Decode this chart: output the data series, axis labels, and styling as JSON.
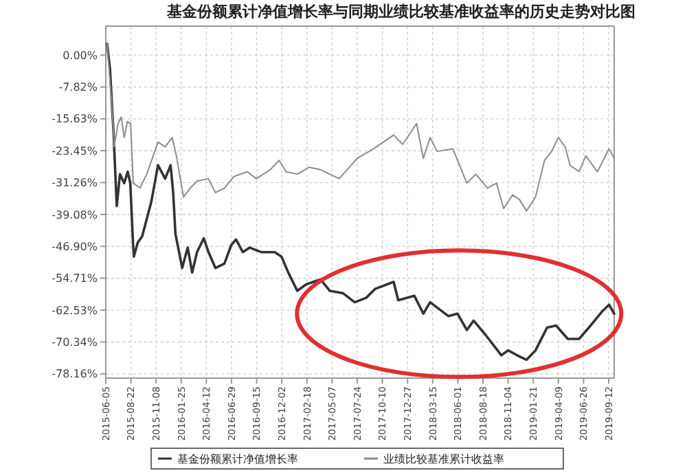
{
  "chart_data": {
    "type": "line",
    "title": "基金份额累计净值增长率与同期业绩比较基准收益率的历史走势对比图",
    "xlim": [
      "2015-06-05",
      "2019-09-29"
    ],
    "xticks": [
      "2015-06-05",
      "2015-08-22",
      "2015-11-08",
      "2016-01-25",
      "2016-04-12",
      "2016-06-29",
      "2016-09-15",
      "2016-12-02",
      "2017-02-18",
      "2017-05-07",
      "2017-07-24",
      "2017-10-10",
      "2017-12-27",
      "2018-03-15",
      "2018-06-01",
      "2018-08-18",
      "2018-11-04",
      "2019-01-21",
      "2019-04-09",
      "2019-06-26",
      "2019-09-12"
    ],
    "ylim": [
      -79.2,
      7.1
    ],
    "yticks": [
      {
        "value": 0,
        "label": "0.00%"
      },
      {
        "value": -7.82,
        "label": "-7.82%"
      },
      {
        "value": -15.63,
        "label": "-15.63%"
      },
      {
        "value": -23.45,
        "label": "-23.45%"
      },
      {
        "value": -31.26,
        "label": "-31.26%"
      },
      {
        "value": -39.08,
        "label": "-39.08%"
      },
      {
        "value": -46.9,
        "label": "-46.90%"
      },
      {
        "value": -54.71,
        "label": "-54.71%"
      },
      {
        "value": -62.53,
        "label": "-62.53%"
      },
      {
        "value": -70.34,
        "label": "-70.34%"
      },
      {
        "value": -78.16,
        "label": "-78.16%"
      }
    ],
    "grid": true,
    "legend": "bottom",
    "marker": "none",
    "line_style": "solid",
    "series": [
      {
        "name": "基金份额累计净值增长率",
        "color": "#333333",
        "x": [
          "2015-06-09",
          "2015-06-18",
          "2015-06-29",
          "2015-07-09",
          "2015-07-19",
          "2015-08-01",
          "2015-08-12",
          "2015-08-20",
          "2015-08-28",
          "2015-08-31",
          "2015-09-12",
          "2015-09-26",
          "2015-10-24",
          "2015-11-14",
          "2015-12-06",
          "2015-12-23",
          "2015-12-31",
          "2016-01-07",
          "2016-01-28",
          "2016-02-14",
          "2016-02-28",
          "2016-03-14",
          "2016-04-04",
          "2016-04-18",
          "2016-05-10",
          "2016-06-07",
          "2016-06-28",
          "2016-07-13",
          "2016-08-03",
          "2016-08-24",
          "2016-09-29",
          "2016-11-10",
          "2016-12-01",
          "2016-12-22",
          "2017-01-19",
          "2017-02-16",
          "2017-04-01",
          "2017-04-30",
          "2017-06-10",
          "2017-07-16",
          "2017-08-21",
          "2017-09-18",
          "2017-11-14",
          "2017-11-28",
          "2018-01-17",
          "2018-02-14",
          "2018-03-07",
          "2018-05-03",
          "2018-05-31",
          "2018-06-29",
          "2018-07-20",
          "2018-08-25",
          "2018-10-14",
          "2018-11-04",
          "2018-12-02",
          "2018-12-31",
          "2019-01-28",
          "2019-03-05",
          "2019-04-02",
          "2019-05-08",
          "2019-06-12",
          "2019-07-18",
          "2019-08-22",
          "2019-09-13",
          "2019-09-29"
        ],
        "values": [
          2.8,
          -3.4,
          -19.1,
          -37,
          -29.2,
          -31.4,
          -28.6,
          -31.4,
          -45.5,
          -49.4,
          -46,
          -44.4,
          -36,
          -27,
          -30.3,
          -27,
          -33.7,
          -43.8,
          -52.2,
          -47.2,
          -53.3,
          -48.3,
          -44.9,
          -48.2,
          -52.2,
          -51.1,
          -46.6,
          -45.2,
          -48.3,
          -47.2,
          -48.3,
          -48.3,
          -49.4,
          -53.3,
          -57.8,
          -56.2,
          -55,
          -57.8,
          -58.4,
          -60.6,
          -59.5,
          -57.3,
          -55.6,
          -60.1,
          -59,
          -63.4,
          -60.6,
          -64,
          -63.4,
          -67.4,
          -65.1,
          -68.5,
          -73.6,
          -72.4,
          -73.6,
          -74.7,
          -72.4,
          -66.8,
          -66.3,
          -69.6,
          -69.6,
          -66.3,
          -62.9,
          -61.2,
          -63.4
        ]
      },
      {
        "name": "业绩比较基准累计收益率",
        "color": "#8c8c8c",
        "x": [
          "2015-06-09",
          "2015-06-25",
          "2015-07-01",
          "2015-07-13",
          "2015-07-23",
          "2015-08-01",
          "2015-08-11",
          "2015-08-21",
          "2015-08-29",
          "2015-09-19",
          "2015-10-10",
          "2015-11-14",
          "2015-12-06",
          "2015-12-28",
          "2016-01-10",
          "2016-02-01",
          "2016-02-22",
          "2016-03-14",
          "2016-04-18",
          "2016-05-10",
          "2016-06-07",
          "2016-07-06",
          "2016-08-17",
          "2016-09-14",
          "2016-10-27",
          "2016-11-24",
          "2016-12-15",
          "2017-01-19",
          "2017-02-24",
          "2017-04-01",
          "2017-04-30",
          "2017-05-29",
          "2017-07-24",
          "2017-09-12",
          "2017-11-14",
          "2017-12-12",
          "2018-01-24",
          "2018-02-14",
          "2018-03-07",
          "2018-03-29",
          "2018-05-17",
          "2018-05-31",
          "2018-06-29",
          "2018-07-27",
          "2018-09-01",
          "2018-09-29",
          "2018-10-21",
          "2018-11-18",
          "2018-12-09",
          "2018-12-31",
          "2019-01-28",
          "2019-02-25",
          "2019-03-19",
          "2019-04-09",
          "2019-04-30",
          "2019-05-15",
          "2019-06-12",
          "2019-07-03",
          "2019-08-08",
          "2019-09-13",
          "2019-09-29"
        ],
        "values": [
          2.8,
          -13.5,
          -22.5,
          -16.8,
          -15.2,
          -20.2,
          -16.3,
          -16.8,
          -31.4,
          -32.6,
          -29.2,
          -21.3,
          -22.5,
          -20.2,
          -24.7,
          -34.8,
          -32.6,
          -30.9,
          -30.3,
          -33.7,
          -32.6,
          -29.8,
          -28.6,
          -30.3,
          -28.1,
          -25.8,
          -28.6,
          -29.2,
          -27.5,
          -28.1,
          -29.2,
          -30.3,
          -25.3,
          -23,
          -19.6,
          -21.9,
          -16.8,
          -25.3,
          -20.2,
          -23.6,
          -23,
          -25.8,
          -31.4,
          -29.2,
          -32.6,
          -31.4,
          -37.6,
          -34.3,
          -35.4,
          -38.2,
          -34.8,
          -25.8,
          -23.6,
          -20.2,
          -22.5,
          -27,
          -28.6,
          -24.7,
          -28.6,
          -23,
          -25.3
        ]
      }
    ]
  }
}
